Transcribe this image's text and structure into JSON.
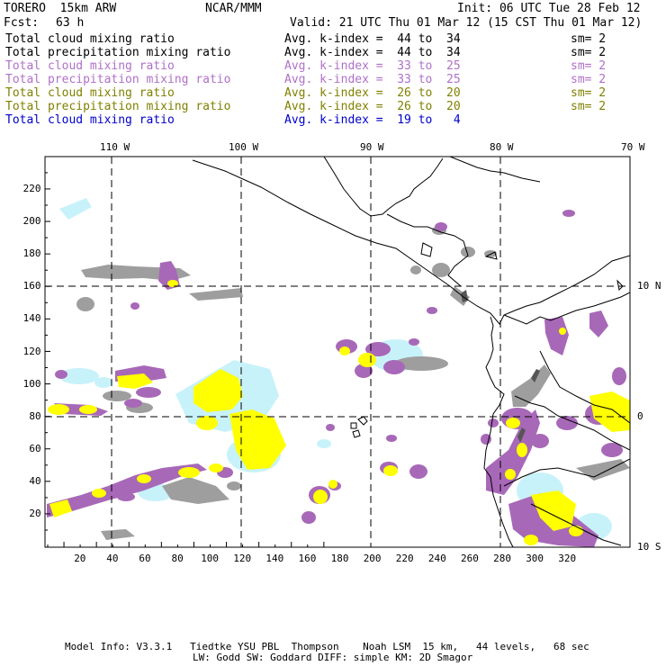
{
  "header": {
    "model": "TORERO  15km ARW",
    "org": "NCAR/MMM",
    "init": "Init: 06 UTC Tue 28 Feb 12",
    "fcst_label": "Fcst:",
    "fcst_value": "63 h",
    "valid": "Valid: 21 UTC Thu 01 Mar 12 (15 CST Thu 01 Mar 12)"
  },
  "legend": [
    {
      "field": "Total cloud mixing ratio",
      "index": "Avg. k-index =  44 to  34",
      "sm": "sm= 2",
      "color": "#000000"
    },
    {
      "field": "Total precipitation mixing ratio",
      "index": "Avg. k-index =  44 to  34",
      "sm": "sm= 2",
      "color": "#000000"
    },
    {
      "field": "Total cloud mixing ratio",
      "index": "Avg. k-index =  33 to  25",
      "sm": "sm= 2",
      "color": "#b070c8"
    },
    {
      "field": "Total precipitation mixing ratio",
      "index": "Avg. k-index =  33 to  25",
      "sm": "sm= 2",
      "color": "#b070c8"
    },
    {
      "field": "Total cloud mixing ratio",
      "index": "Avg. k-index =  26 to  20",
      "sm": "sm= 2",
      "color": "#808000"
    },
    {
      "field": "Total precipitation mixing ratio",
      "index": "Avg. k-index =  26 to  20",
      "sm": "sm= 2",
      "color": "#808000"
    },
    {
      "field": "Total cloud mixing ratio",
      "index": "Avg. k-index =  19 to   4",
      "sm": "",
      "color": "#0000cc"
    }
  ],
  "map": {
    "lon_labels": [
      "110 W",
      "100 W",
      "90 W",
      "80 W",
      "70 W"
    ],
    "lat_labels": [
      "10 N",
      "0",
      "10 S"
    ],
    "x_ticks": [
      "20",
      "40",
      "60",
      "80",
      "100",
      "120",
      "140",
      "160",
      "180",
      "200",
      "220",
      "240",
      "260",
      "280",
      "300",
      "320"
    ],
    "y_ticks": [
      "20",
      "40",
      "60",
      "80",
      "100",
      "120",
      "140",
      "160",
      "180",
      "200",
      "220"
    ],
    "colors": {
      "gray": "#9e9e9e",
      "purple": "#a868b8",
      "yellow": "#ffff00",
      "cyan": "#c8f2fa",
      "dark": "#505050"
    }
  },
  "footer": {
    "line1": "Model Info: V3.3.1   Tiedtke YSU PBL  Thompson    Noah LSM  15 km,   44 levels,   68 sec",
    "line2": "LW: Godd SW: Goddard DIFF: simple KM: 2D Smagor"
  }
}
